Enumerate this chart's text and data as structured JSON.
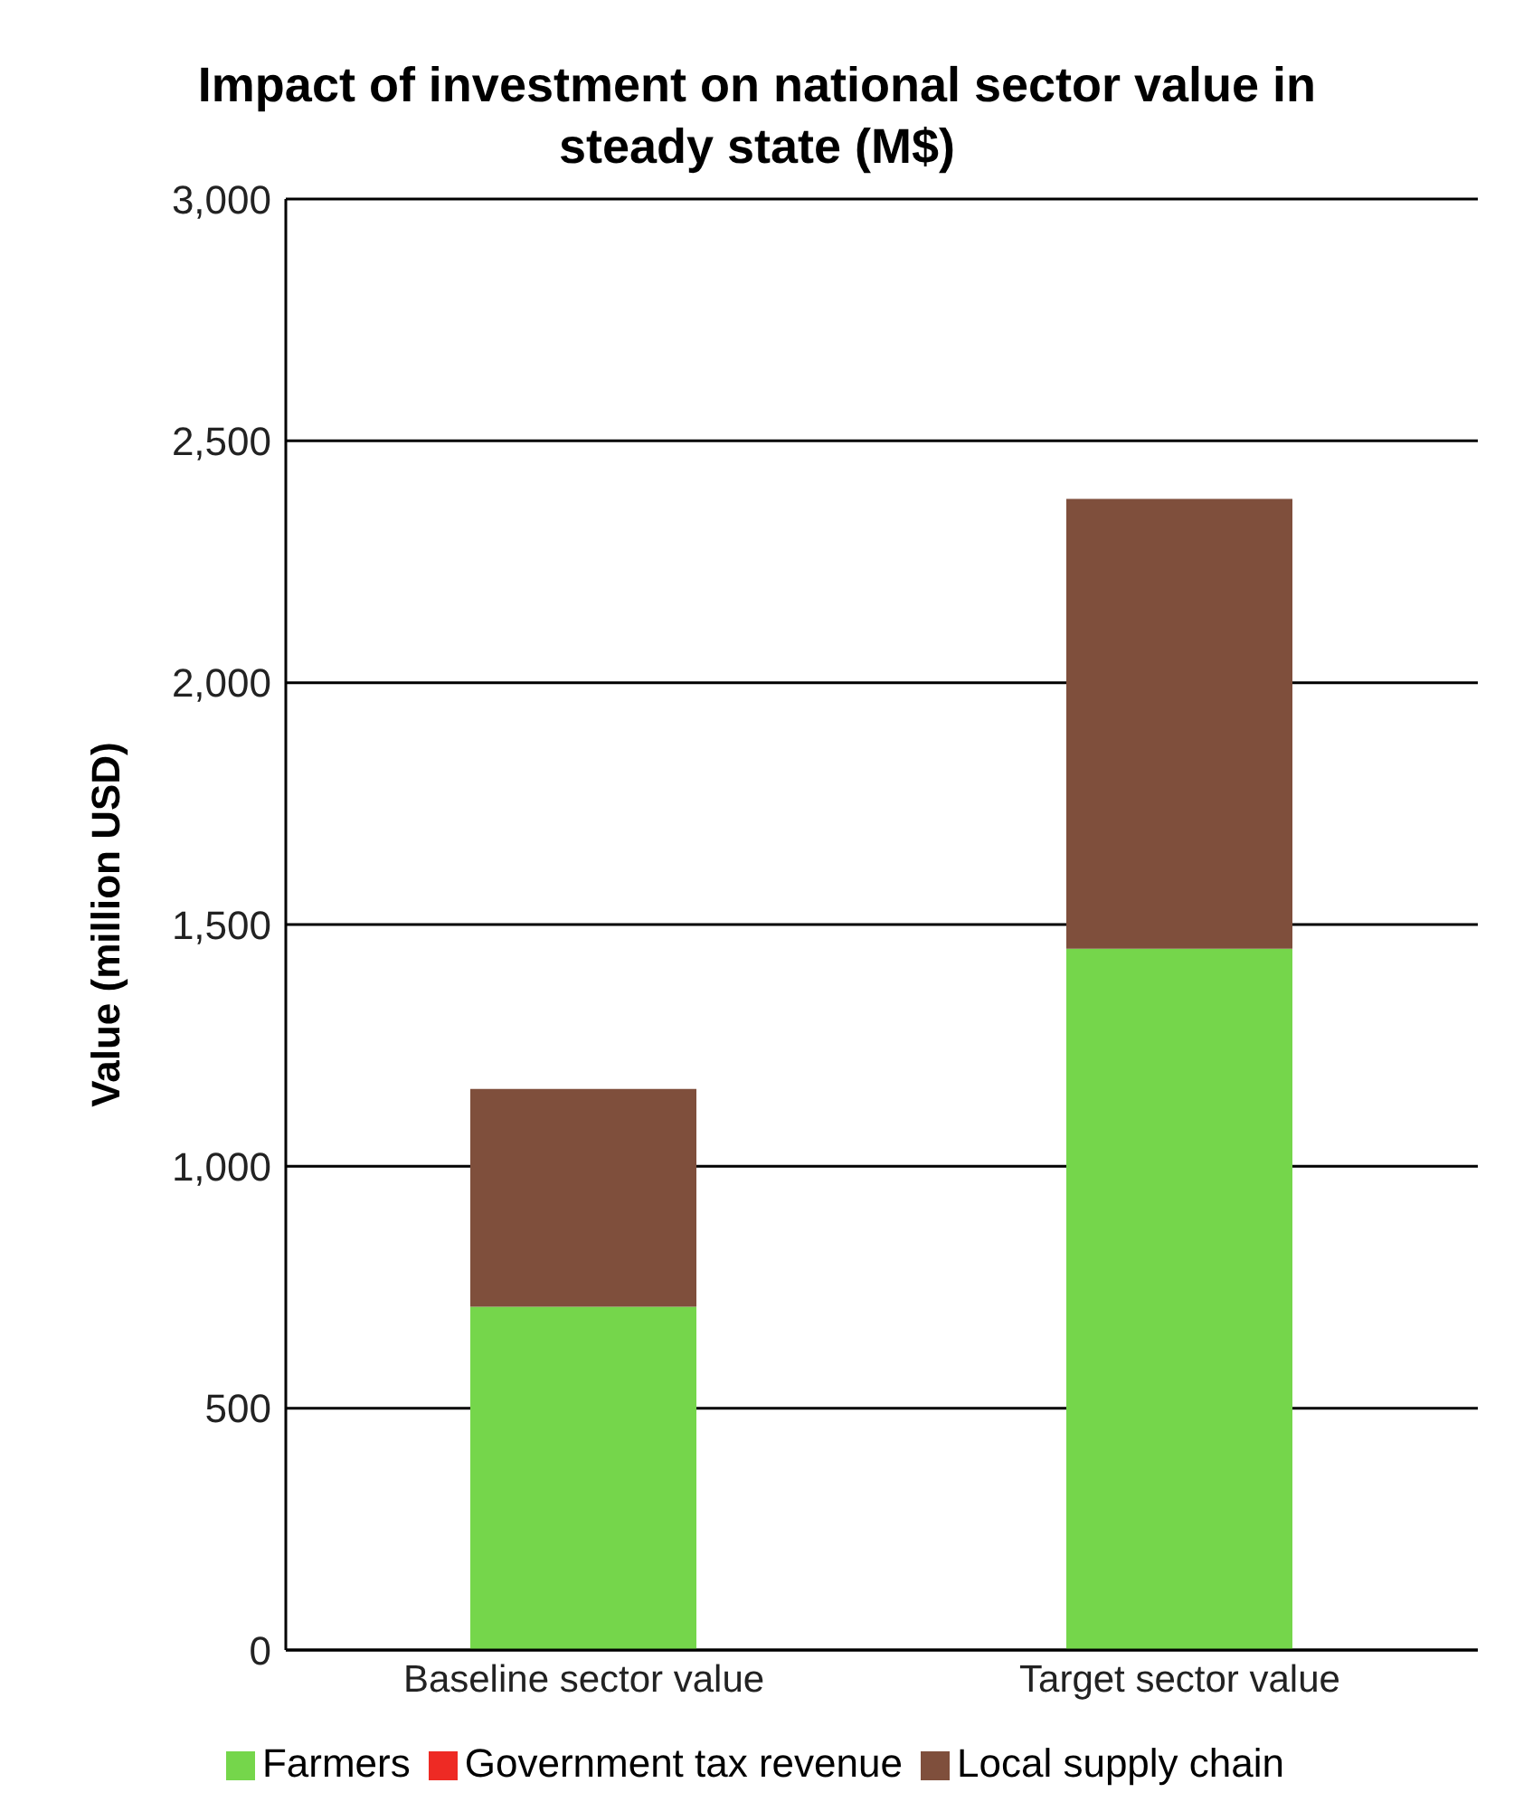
{
  "chart_data": {
    "type": "bar",
    "title": "Impact of investment on national sector value in steady state (M$)",
    "ylabel": "Value (million USD)",
    "categories": [
      "Baseline sector value",
      "Target sector value"
    ],
    "stacked": true,
    "series": [
      {
        "name": "Farmers",
        "color": "#75d64b",
        "values": [
          710,
          1450
        ]
      },
      {
        "name": "Local supply chain",
        "color": "#7f4f3c",
        "values": [
          450,
          930
        ]
      },
      {
        "name": "Government tax revenue",
        "color": "#ee2a24",
        "values": [
          0,
          0
        ]
      }
    ],
    "ylim": [
      0,
      3000
    ],
    "yticks": [
      {
        "value": 0,
        "label": "0"
      },
      {
        "value": 500,
        "label": "500"
      },
      {
        "value": 1000,
        "label": "1,000"
      },
      {
        "value": 1500,
        "label": "1,500"
      },
      {
        "value": 2000,
        "label": "2,000"
      },
      {
        "value": 2500,
        "label": "2,500"
      },
      {
        "value": 3000,
        "label": "3,000"
      }
    ],
    "grid": "y",
    "legend": "bottom"
  }
}
